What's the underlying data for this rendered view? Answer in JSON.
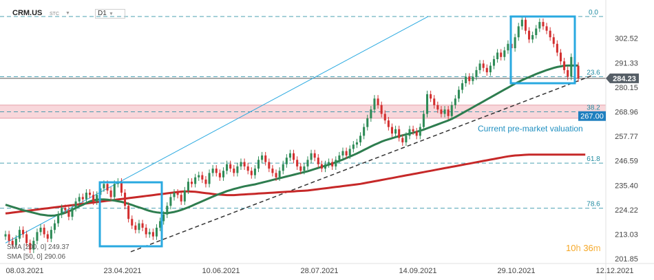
{
  "header": {
    "symbol": "CRM.US",
    "source": "STC",
    "timeframe": "D1"
  },
  "timer": {
    "hours": "10",
    "h_unit": "h",
    "minutes": "36",
    "m_unit": "m"
  },
  "annotation_text": "Current pre-market valuation",
  "colors": {
    "up": "#2e8b57",
    "down": "#d32f2f",
    "sma200": "#c62828",
    "sma50": "#2e7d4f",
    "fib": "#1f8aa0",
    "box": "#29a9e0",
    "zone": "#f6c9cf"
  },
  "chart_data": {
    "type": "candlestick",
    "ylim": [
      201.85,
      315
    ],
    "y_ticks": [
      302.52,
      291.33,
      280.15,
      268.96,
      257.77,
      246.59,
      235.4,
      224.22,
      213.03,
      201.85
    ],
    "y_tick_labels": [
      "302.52",
      "291.33",
      "280.15",
      "268.96",
      "257.77",
      "246.59",
      "235.40",
      "224.22",
      "213.03",
      "201.85"
    ],
    "x_ticks": [
      "08.03.2021",
      "23.04.2021",
      "10.06.2021",
      "28.07.2021",
      "14.09.2021",
      "29.10.2021",
      "12.12.2021"
    ],
    "last_price": 284.23,
    "last_price_label": "284.23",
    "premarket_price": 267.0,
    "premarket_label": "267.00",
    "fib_levels": [
      {
        "label": "0.0",
        "value": 312.5
      },
      {
        "label": "23.6",
        "value": 285.0
      },
      {
        "label": "38.2",
        "value": 268.96
      },
      {
        "label": "61.8",
        "value": 245.5
      },
      {
        "label": "78.6",
        "value": 224.9
      }
    ],
    "sma_legend": [
      {
        "label": "SMA [200, 0] 249.37"
      },
      {
        "label": "SMA [50, 0] 290.06"
      }
    ],
    "closes": [
      213,
      210,
      208,
      211,
      215,
      213,
      209,
      206,
      210,
      214,
      216,
      213,
      211,
      215,
      218,
      222,
      225,
      224,
      221,
      225,
      228,
      230,
      229,
      232,
      231,
      228,
      231,
      234,
      236,
      233,
      230,
      236,
      237,
      232,
      226,
      220,
      217,
      215,
      218,
      216,
      213,
      214,
      212,
      216,
      219,
      222,
      226,
      230,
      232,
      231,
      228,
      233,
      237,
      236,
      239,
      240,
      238,
      236,
      241,
      243,
      241,
      239,
      242,
      245,
      243,
      241,
      244,
      246,
      244,
      242,
      240,
      243,
      247,
      249,
      246,
      243,
      241,
      239,
      242,
      245,
      248,
      250,
      247,
      244,
      242,
      244,
      247,
      250,
      248,
      245,
      243,
      245,
      246,
      244,
      247,
      249,
      251,
      249,
      252,
      254,
      255,
      258,
      262,
      266,
      270,
      275,
      272,
      268,
      265,
      262,
      259,
      261,
      257,
      255,
      258,
      261,
      260,
      258,
      262,
      268,
      277,
      275,
      272,
      270,
      268,
      270,
      267,
      272,
      275,
      279,
      282,
      285,
      283,
      285,
      288,
      291,
      289,
      287,
      290,
      293,
      296,
      294,
      297,
      300,
      298,
      303,
      308,
      311,
      306,
      302,
      304,
      307,
      310,
      308,
      306,
      303,
      300,
      296,
      292,
      288,
      285,
      294,
      290,
      284.23
    ],
    "sma50": [
      226.5,
      226,
      225.5,
      225,
      224.5,
      224,
      223.6,
      223.2,
      222.8,
      222.4,
      222,
      221.8,
      221.6,
      221.5,
      221.6,
      221.9,
      222.3,
      222.8,
      223.5,
      224.2,
      225,
      225.8,
      226.5,
      227.3,
      228,
      228.5,
      228.8,
      228.9,
      228.9,
      228.8,
      228.6,
      228.4,
      228.1,
      227.8,
      227.4,
      226.9,
      226.4,
      225.8,
      225.3,
      224.8,
      224.2,
      223.7,
      223.3,
      223,
      222.8,
      222.7,
      222.7,
      222.9,
      223.2,
      223.6,
      224.1,
      224.7,
      225.3,
      226,
      226.7,
      227.4,
      228.1,
      228.8,
      229.5,
      230.2,
      230.9,
      231.5,
      232.1,
      232.7,
      233.2,
      233.7,
      234.1,
      234.5,
      234.9,
      235.2,
      235.5,
      235.8,
      236.2,
      236.6,
      237,
      237.4,
      237.8,
      238.2,
      238.6,
      239,
      239.4,
      239.8,
      240.2,
      240.6,
      241,
      241.4,
      241.8,
      242.3,
      242.8,
      243.3,
      243.8,
      244.3,
      244.8,
      245.3,
      245.9,
      246.5,
      247.1,
      247.8,
      248.5,
      249.2,
      249.9,
      250.7,
      251.5,
      252.3,
      253.1,
      253.9,
      254.6,
      255.3,
      255.9,
      256.4,
      256.9,
      257.4,
      257.8,
      258.2,
      258.6,
      259,
      259.4,
      259.8,
      260.3,
      260.8,
      261.4,
      262,
      262.6,
      263.2,
      263.8,
      264.4,
      265,
      265.7,
      266.5,
      267.4,
      268.3,
      269.2,
      270.1,
      271,
      271.9,
      272.8,
      273.7,
      274.6,
      275.5,
      276.4,
      277.3,
      278.2,
      279.1,
      280,
      280.9,
      281.8,
      282.6,
      283.4,
      284.1,
      284.8,
      285.5,
      286.2,
      286.8,
      287.4,
      288,
      288.5,
      289,
      289.4,
      289.7,
      290,
      290.06,
      290.06,
      290.06,
      290.06
    ],
    "sma200": [
      222.5,
      222.7,
      222.9,
      223.1,
      223.3,
      223.5,
      223.7,
      223.9,
      224.1,
      224.3,
      224.5,
      224.7,
      224.9,
      225.1,
      225.3,
      225.5,
      225.7,
      225.9,
      226.1,
      226.3,
      226.5,
      226.7,
      226.9,
      227.1,
      227.3,
      227.5,
      227.7,
      227.9,
      228.1,
      228.3,
      228.5,
      228.7,
      228.9,
      229.1,
      229.3,
      229.5,
      229.7,
      229.9,
      230.1,
      230.3,
      230.5,
      230.7,
      230.9,
      231.1,
      231.3,
      231.5,
      231.7,
      231.9,
      232.1,
      232.3,
      232.5,
      232.6,
      232.6,
      232.5,
      232.4,
      232.2,
      232,
      231.8,
      231.6,
      231.4,
      231.2,
      231.1,
      231,
      230.9,
      230.9,
      230.9,
      231,
      231.1,
      231.2,
      231.3,
      231.4,
      231.5,
      231.6,
      231.7,
      231.8,
      231.9,
      232,
      232.1,
      232.2,
      232.3,
      232.4,
      232.5,
      232.6,
      232.7,
      232.8,
      232.9,
      233,
      233.2,
      233.4,
      233.6,
      233.8,
      234,
      234.2,
      234.4,
      234.6,
      234.8,
      235,
      235.2,
      235.4,
      235.6,
      235.8,
      236,
      236.3,
      236.6,
      236.9,
      237.2,
      237.5,
      237.8,
      238.1,
      238.4,
      238.7,
      239,
      239.3,
      239.6,
      239.9,
      240.2,
      240.5,
      240.8,
      241.1,
      241.4,
      241.7,
      242,
      242.3,
      242.6,
      242.9,
      243.2,
      243.5,
      243.8,
      244.1,
      244.4,
      244.7,
      245,
      245.3,
      245.6,
      245.9,
      246.2,
      246.5,
      246.8,
      247.1,
      247.4,
      247.7,
      248,
      248.3,
      248.6,
      248.8,
      249,
      249.1,
      249.2,
      249.3,
      249.37,
      249.37,
      249.37,
      249.37,
      249.37,
      249.37,
      249.37,
      249.37,
      249.37,
      249.37,
      249.37,
      249.37,
      249.37,
      249.37,
      249.37,
      249.37,
      249.37
    ]
  }
}
